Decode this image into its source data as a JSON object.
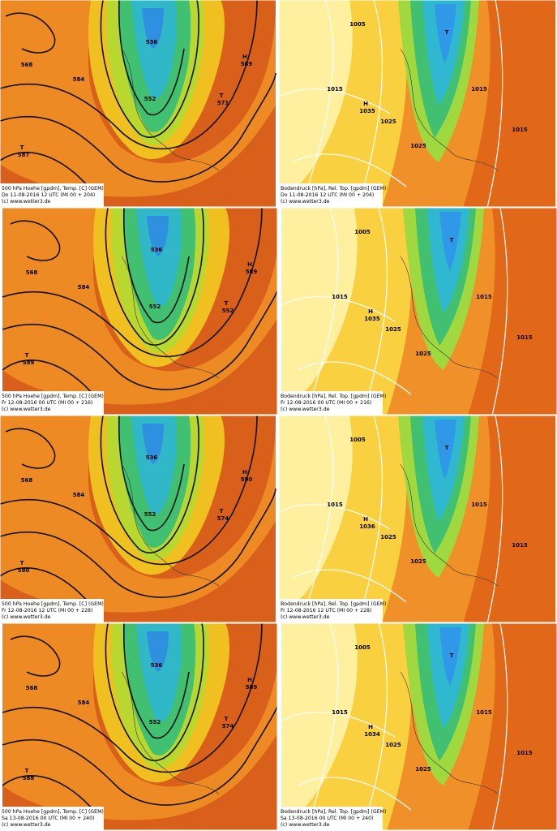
{
  "panels": [
    {
      "caption": [
        "500 hPa Hoehe [gpdm], Temp. [C] (GEM)",
        "Do 11-08-2016 12  UTC (MI 00 + 204)",
        "(c) www.wetter3.de"
      ],
      "labels": [
        "552",
        "536",
        "568",
        "584",
        "H",
        "589",
        "T",
        "571",
        "T",
        "587"
      ]
    },
    {
      "caption": [
        "Bodendruck [hPa], Rel. Top. [gpdm] (GEM)",
        "Do 11-08-2016 12  UTC (MI 00 + 204)",
        "(c) www.wetter3.de"
      ],
      "labels": [
        "1005",
        "1015",
        "1025",
        "H",
        "1035",
        "T",
        "1015",
        "1015",
        "1025"
      ]
    },
    {
      "caption": [
        "500 hPa Hoehe [gpdm], Temp. [C] (GEM)",
        "Fr 12-08-2016 00  UTC (MI 00 + 216)",
        "(c) www.wetter3.de"
      ],
      "labels": [
        "552",
        "536",
        "568",
        "584",
        "H",
        "589",
        "T",
        "552",
        "T",
        "589"
      ]
    },
    {
      "caption": [
        "Bodendruck [hPa], Rel. Top. [gpdm] (GEM)",
        "Fr 12-08-2016 00  UTC (MI 00 + 216)",
        "(c) www.wetter3.de"
      ],
      "labels": [
        "1005",
        "1015",
        "1025",
        "H",
        "1035",
        "T",
        "1015",
        "1015",
        "1025"
      ]
    },
    {
      "caption": [
        "500 hPa Hoehe [gpdm], Temp. [C] (GEM)",
        "Fr 12-08-2016 12  UTC (MI 00 + 228)",
        "(c) www.wetter3.de"
      ],
      "labels": [
        "552",
        "536",
        "568",
        "584",
        "H",
        "590",
        "T",
        "574",
        "T",
        "580"
      ]
    },
    {
      "caption": [
        "Bodendruck [hPa], Rel. Top. [gpdm] (GEM)",
        "Fr 12-08-2016 12  UTC (MI 00 + 228)",
        "(c) www.wetter3.de"
      ],
      "labels": [
        "1005",
        "1015",
        "1025",
        "H",
        "1036",
        "T",
        "1015",
        "1015",
        "1025"
      ]
    },
    {
      "caption": [
        "500 hPa Hoehe [gpdm], Temp. [C] (GEM)",
        "Sa 13-08-2016 00  UTC (MI 00 + 240)",
        "(c) www.wetter3.de"
      ],
      "labels": [
        "552",
        "536",
        "568",
        "584",
        "H",
        "589",
        "T",
        "574",
        "T",
        "588"
      ]
    },
    {
      "caption": [
        "Bodendruck [hPa], Rel. Top. [gpdm] (GEM)",
        "Sa 13-08-2016 00  UTC (MI 00 + 240)",
        "(c) www.wetter3.de"
      ],
      "labels": [
        "1005",
        "1015",
        "1025",
        "H",
        "1034",
        "T",
        "1015",
        "1015",
        "1025"
      ]
    }
  ]
}
